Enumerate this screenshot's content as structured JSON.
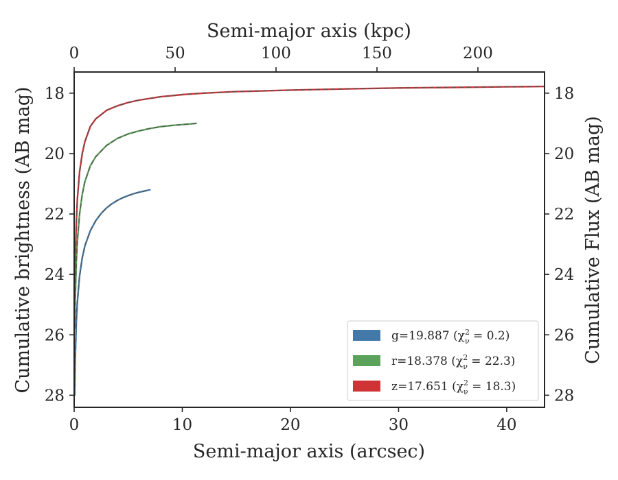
{
  "chart_data": {
    "type": "line",
    "x_bottom": {
      "label": "Semi-major axis (arcsec)",
      "range": [
        0,
        43.5
      ],
      "ticks": [
        0,
        10,
        20,
        30,
        40
      ],
      "tick_labels": [
        "0",
        "10",
        "20",
        "30",
        "40"
      ]
    },
    "x_top": {
      "label": "Semi-major axis (kpc)",
      "range": [
        0,
        233
      ],
      "ticks": [
        0,
        50,
        100,
        150,
        200
      ],
      "tick_labels": [
        "0",
        "50",
        "100",
        "150",
        "200"
      ]
    },
    "y_left": {
      "label": "Cumulative brightness (AB mag)",
      "range": [
        28.4,
        17.3
      ],
      "inverted": true,
      "ticks": [
        18,
        20,
        22,
        24,
        26,
        28
      ],
      "tick_labels": [
        "18",
        "20",
        "22",
        "24",
        "26",
        "28"
      ]
    },
    "y_right": {
      "label": "Cumulative Flux (AB mag)",
      "range": [
        28.4,
        17.3
      ],
      "inverted": true,
      "ticks": [
        18,
        20,
        22,
        24,
        26,
        28
      ],
      "tick_labels": [
        "18",
        "20",
        "22",
        "24",
        "26",
        "28"
      ]
    },
    "legend_position": "lower-right",
    "series": [
      {
        "name": "g=19.887 (χ²ν = 0.2)",
        "legend_label": "g=19.887 (χ",
        "legend_sup": "2",
        "legend_sub": "ν",
        "legend_tail": " = 0.2)",
        "color": "#4279a9",
        "fit_color": "#555555",
        "x": [
          0.05,
          0.1,
          0.2,
          0.3,
          0.5,
          0.75,
          1.0,
          1.5,
          2.0,
          2.5,
          3.0,
          3.5,
          4.0,
          4.5,
          5.0,
          5.5,
          6.0,
          6.5,
          7.0
        ],
        "y": [
          28.0,
          26.8,
          25.6,
          24.9,
          24.05,
          23.45,
          23.05,
          22.55,
          22.22,
          21.98,
          21.8,
          21.66,
          21.55,
          21.46,
          21.39,
          21.33,
          21.28,
          21.24,
          21.2
        ]
      },
      {
        "name": "r=18.378 (χ²ν = 22.3)",
        "legend_label": "r=18.378 (χ",
        "legend_sup": "2",
        "legend_sub": "ν",
        "legend_tail": " = 22.3)",
        "color": "#5ba35a",
        "fit_color": "#555555",
        "x": [
          0.05,
          0.1,
          0.2,
          0.3,
          0.5,
          0.75,
          1.0,
          1.5,
          2.0,
          3.0,
          4.0,
          5.0,
          6.0,
          7.0,
          8.0,
          9.0,
          10.0,
          11.3
        ],
        "y": [
          25.8,
          24.8,
          23.6,
          22.9,
          22.0,
          21.35,
          20.92,
          20.4,
          20.1,
          19.73,
          19.5,
          19.35,
          19.25,
          19.17,
          19.11,
          19.07,
          19.04,
          19.0
        ]
      },
      {
        "name": "z=17.651 (χ²ν = 18.3)",
        "legend_label": "z=17.651 (χ",
        "legend_sup": "2",
        "legend_sub": "ν",
        "legend_tail": " = 18.3)",
        "color": "#d03336",
        "fit_color": "#555555",
        "x": [
          0.05,
          0.1,
          0.2,
          0.3,
          0.5,
          0.75,
          1.0,
          1.5,
          2.0,
          3.0,
          4.0,
          5.0,
          6.0,
          8.0,
          10.0,
          12.0,
          15.0,
          20.0,
          25.0,
          30.0,
          35.0,
          40.0,
          43.5
        ],
        "y": [
          24.8,
          23.5,
          22.3,
          21.5,
          20.6,
          20.0,
          19.6,
          19.1,
          18.85,
          18.57,
          18.42,
          18.31,
          18.23,
          18.12,
          18.05,
          18.0,
          17.95,
          17.9,
          17.86,
          17.83,
          17.81,
          17.79,
          17.78
        ]
      }
    ]
  }
}
